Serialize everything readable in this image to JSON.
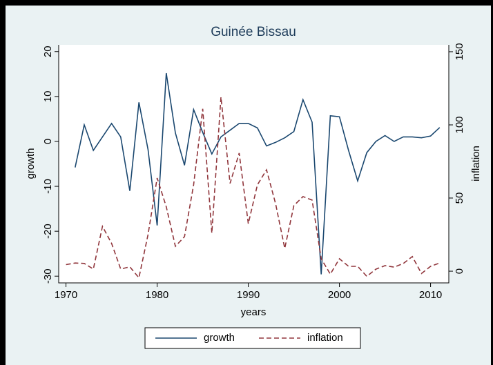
{
  "chart_data": {
    "type": "line",
    "title": "Guinée Bissau",
    "x_label": "years",
    "y_label": "growth",
    "y2_label": "inflation",
    "x": [
      1970,
      1971,
      1972,
      1973,
      1974,
      1975,
      1976,
      1977,
      1978,
      1979,
      1980,
      1981,
      1982,
      1983,
      1984,
      1985,
      1986,
      1987,
      1988,
      1989,
      1990,
      1991,
      1992,
      1993,
      1994,
      1995,
      1996,
      1997,
      1998,
      1999,
      2000,
      2001,
      2002,
      2003,
      2004,
      2005,
      2006,
      2007,
      2008,
      2009,
      2010,
      2011
    ],
    "series": [
      {
        "name": "growth",
        "color": "#1a476f",
        "dash": false,
        "values": [
          null,
          -5.8,
          3.7,
          -2,
          1,
          4,
          1,
          -11,
          8.7,
          -1.8,
          -18.7,
          15.2,
          1.9,
          -5.3,
          7.1,
          2,
          -2.8,
          1,
          2.5,
          4,
          4,
          3,
          -1,
          -0.2,
          0.8,
          2.2,
          9.3,
          4.3,
          -29.6,
          5.7,
          5.5,
          -2,
          -8.8,
          -2.5,
          0,
          1.3,
          0,
          1,
          1,
          0.8,
          1.2,
          3.1
        ]
      },
      {
        "name": "inflation",
        "color": "#90353b",
        "dash": true,
        "axis": "y2",
        "values": [
          4.5,
          5.6,
          5.3,
          1.5,
          30.6,
          19,
          1.5,
          3,
          -4.5,
          25,
          63.7,
          44,
          17,
          23.6,
          59,
          111,
          26,
          119,
          60,
          80.7,
          32.5,
          59,
          69.3,
          46,
          15.6,
          44.8,
          51,
          48.6,
          8.5,
          -2,
          8.5,
          3.3,
          3.3,
          -3.5,
          1.4,
          3.8,
          2.8,
          5.2,
          10,
          -1.6,
          3.3,
          5.6
        ]
      }
    ],
    "xlim": [
      1969.2,
      2012
    ],
    "xticks": [
      1970,
      1980,
      1990,
      2000,
      2010
    ],
    "ylim": [
      -31.5,
      21.5
    ],
    "yticks": [
      -30,
      -20,
      -10,
      0,
      10,
      20
    ],
    "y2lim": [
      -8,
      154.7
    ],
    "y2ticks": [
      0,
      50,
      100,
      150
    ],
    "grid": false,
    "legend": "bottom"
  }
}
